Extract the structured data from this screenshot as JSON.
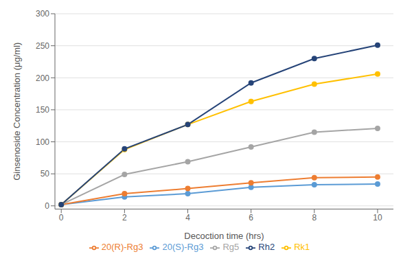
{
  "chart_data": {
    "type": "line",
    "xlabel": "Decoction time (hrs)",
    "ylabel": "Ginsenoside Concentration (μg/ml)",
    "x": [
      0,
      2,
      4,
      6,
      8,
      10
    ],
    "series": [
      {
        "name": "20(S)-Rg3",
        "color": "#5b9bd5",
        "marker": "circle",
        "values": [
          2,
          14,
          19,
          29,
          33,
          34
        ]
      },
      {
        "name": "20(R)-Rg3",
        "color": "#ed7d31",
        "marker": "circle",
        "values": [
          2,
          19,
          27,
          36,
          44,
          45
        ]
      },
      {
        "name": "Rg5",
        "color": "#a5a5a5",
        "marker": "circle",
        "values": [
          2,
          49,
          69,
          92,
          115,
          121
        ]
      },
      {
        "name": "Rk1",
        "color": "#ffc000",
        "marker": "circle",
        "values": [
          2,
          88,
          127,
          163,
          190,
          206
        ]
      },
      {
        "name": "Rh2",
        "color": "#264478",
        "marker": "circle",
        "values": [
          2,
          89,
          127,
          192,
          230,
          251
        ]
      }
    ],
    "xlim": [
      -0.2,
      10.5
    ],
    "ylim": [
      -5,
      300
    ],
    "xticks": [
      0,
      2,
      4,
      6,
      8,
      10
    ],
    "yticks": [
      0,
      50,
      100,
      150,
      200,
      250,
      300
    ],
    "grid": true,
    "legend": "bottom"
  }
}
